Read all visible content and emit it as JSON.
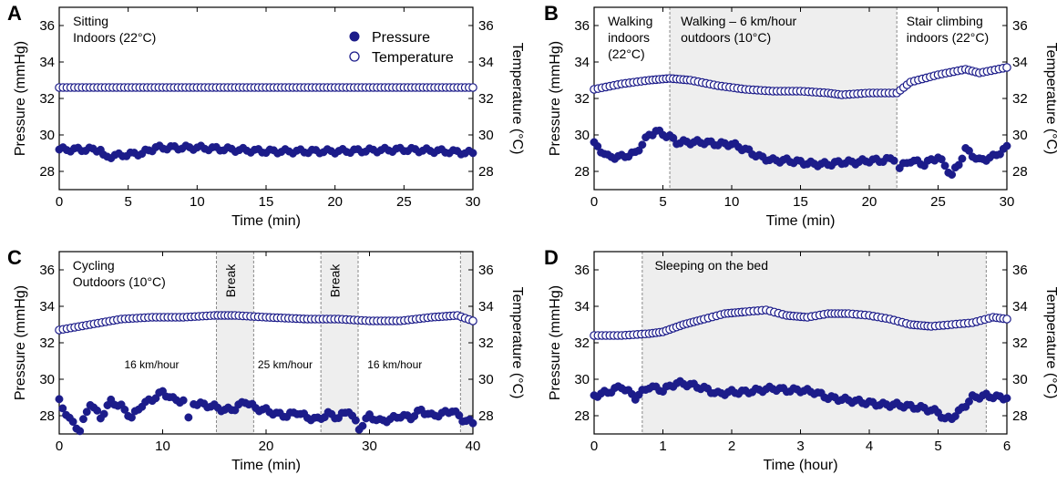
{
  "colors": {
    "pressure": "#1c1c8a",
    "temperature": "#1c1c8a",
    "shade": "#eeeeee",
    "divider": "#888888"
  },
  "legend": {
    "pressure": "Pressure",
    "temperature": "Temperature",
    "placement": "top-right of panel A"
  },
  "chart_data": [
    {
      "type": "scatter",
      "letter": "A",
      "xlabel": "Time (min)",
      "ylabel": "Pressure (mmHg)",
      "ylabel2": "Temperature (°C)",
      "xlim": [
        0,
        30
      ],
      "ylim": [
        27,
        37
      ],
      "xticks": [
        "0",
        "5",
        "10",
        "15",
        "20",
        "25",
        "30"
      ],
      "yticks": [
        "28",
        "30",
        "32",
        "34",
        "36"
      ],
      "shaded": [],
      "dividers": [],
      "annotations": [
        {
          "text": "Sitting",
          "x": 1,
          "y": 36.0,
          "size": "normal"
        },
        {
          "text": "Indoors (22°C)",
          "x": 1,
          "y": 35.1,
          "size": "normal"
        }
      ],
      "series": [
        {
          "name": "Pressure",
          "marker": "filled",
          "x": [
            0,
            3,
            3.2,
            6,
            7,
            10,
            15,
            20,
            25,
            28,
            30
          ],
          "y": [
            29.2,
            29.2,
            28.8,
            29.0,
            29.3,
            29.3,
            29.1,
            29.1,
            29.2,
            29.1,
            29.0
          ]
        },
        {
          "name": "Temperature",
          "marker": "open",
          "x": [
            0,
            5,
            10,
            15,
            20,
            25,
            30
          ],
          "y": [
            32.6,
            32.6,
            32.6,
            32.6,
            32.6,
            32.6,
            32.6
          ]
        }
      ]
    },
    {
      "type": "scatter",
      "letter": "B",
      "xlabel": "Time (min)",
      "ylabel": "Pressure (mmHg)",
      "ylabel2": "Temperature (°C)",
      "xlim": [
        0,
        30
      ],
      "ylim": [
        27,
        37
      ],
      "xticks": [
        "0",
        "5",
        "10",
        "15",
        "20",
        "25",
        "30"
      ],
      "yticks": [
        "28",
        "30",
        "32",
        "34",
        "36"
      ],
      "shaded": [
        [
          5.5,
          22
        ]
      ],
      "dividers": [
        5.5,
        22
      ],
      "annotations": [
        {
          "text": "Walking",
          "x": 1,
          "y": 36.0,
          "size": "normal"
        },
        {
          "text": "indoors",
          "x": 1,
          "y": 35.1,
          "size": "normal"
        },
        {
          "text": "(22°C)",
          "x": 1,
          "y": 34.2,
          "size": "normal"
        },
        {
          "text": "Walking – 6 km/hour",
          "x": 6.3,
          "y": 36.0,
          "size": "normal"
        },
        {
          "text": "outdoors (10°C)",
          "x": 6.3,
          "y": 35.1,
          "size": "normal"
        },
        {
          "text": "Stair climbing",
          "x": 22.7,
          "y": 36.0,
          "size": "normal"
        },
        {
          "text": "indoors (22°C)",
          "x": 22.7,
          "y": 35.1,
          "size": "normal"
        }
      ],
      "series": [
        {
          "name": "Pressure",
          "marker": "filled",
          "x": [
            0,
            1,
            2,
            3,
            4,
            4.5,
            5.5,
            6,
            7,
            8,
            9,
            10,
            11,
            12,
            13,
            14,
            15,
            16,
            17,
            18,
            19,
            20,
            21,
            21.8,
            22.2,
            23,
            24,
            25,
            26,
            26.5,
            27,
            28,
            29,
            30
          ],
          "y": [
            29.5,
            28.8,
            28.8,
            29.0,
            30.0,
            30.2,
            29.9,
            29.6,
            29.6,
            29.6,
            29.5,
            29.5,
            29.2,
            28.8,
            28.6,
            28.6,
            28.5,
            28.4,
            28.4,
            28.5,
            28.5,
            28.6,
            28.6,
            28.7,
            28.2,
            28.6,
            28.4,
            28.8,
            27.8,
            28.4,
            29.2,
            28.6,
            28.8,
            29.3
          ]
        },
        {
          "name": "Temperature",
          "marker": "open",
          "x": [
            0,
            2,
            4,
            5.5,
            7,
            9,
            11,
            13,
            15,
            17,
            18,
            20,
            22,
            23,
            25,
            27,
            28,
            30
          ],
          "y": [
            32.5,
            32.8,
            33.0,
            33.1,
            33.0,
            32.7,
            32.5,
            32.4,
            32.4,
            32.3,
            32.2,
            32.3,
            32.3,
            32.9,
            33.3,
            33.6,
            33.4,
            33.7
          ]
        }
      ]
    },
    {
      "type": "scatter",
      "letter": "C",
      "xlabel": "Time (min)",
      "ylabel": "Pressure (mmHg)",
      "ylabel2": "Temperature (°C)",
      "xlim": [
        0,
        40
      ],
      "ylim": [
        27,
        37
      ],
      "xticks": [
        "0",
        "10",
        "20",
        "30",
        "40"
      ],
      "yticks": [
        "28",
        "30",
        "32",
        "34",
        "36"
      ],
      "shaded": [
        [
          15.2,
          18.8
        ],
        [
          25.3,
          28.9
        ],
        [
          38.8,
          40
        ]
      ],
      "dividers": [
        15.2,
        18.8,
        25.3,
        28.9,
        38.8
      ],
      "breaks": [
        {
          "text": "Break",
          "x": 17,
          "y": 35.4
        },
        {
          "text": "Break",
          "x": 27.1,
          "y": 35.4
        }
      ],
      "annotations": [
        {
          "text": "Cycling",
          "x": 1.3,
          "y": 36.0,
          "size": "normal"
        },
        {
          "text": "Outdoors (10°C)",
          "x": 1.3,
          "y": 35.1,
          "size": "normal"
        },
        {
          "text": "16 km/hour",
          "x": 6.3,
          "y": 30.6,
          "size": "small"
        },
        {
          "text": "25 km/hour",
          "x": 19.2,
          "y": 30.6,
          "size": "small"
        },
        {
          "text": "16 km/hour",
          "x": 29.8,
          "y": 30.6,
          "size": "small"
        }
      ],
      "series": [
        {
          "name": "Pressure",
          "marker": "filled",
          "x": [
            0,
            1,
            2,
            3,
            4,
            5,
            6,
            7,
            8,
            9,
            10,
            11,
            12,
            12.5,
            13,
            14,
            15,
            16,
            17,
            18,
            19,
            20,
            21,
            22,
            23,
            24,
            25,
            26,
            27,
            28,
            29,
            30,
            31,
            32,
            33,
            34,
            35,
            36,
            37,
            38,
            39,
            40
          ],
          "y": [
            28.8,
            27.8,
            27.2,
            28.7,
            27.9,
            28.8,
            28.5,
            27.9,
            28.6,
            28.9,
            29.3,
            28.9,
            28.8,
            27.8,
            28.7,
            28.6,
            28.5,
            28.3,
            28.4,
            28.8,
            28.4,
            28.3,
            28.1,
            28.0,
            28.2,
            27.9,
            27.8,
            28.1,
            27.9,
            28.3,
            27.3,
            28.0,
            27.7,
            27.8,
            28.0,
            27.9,
            28.3,
            28.0,
            28.1,
            28.3,
            27.8,
            27.6
          ]
        },
        {
          "name": "Temperature",
          "marker": "open",
          "x": [
            0,
            3,
            6,
            9,
            12,
            15,
            17,
            20,
            24,
            27,
            30,
            33,
            36,
            38.5,
            40
          ],
          "y": [
            32.7,
            33.0,
            33.3,
            33.4,
            33.4,
            33.5,
            33.5,
            33.4,
            33.3,
            33.3,
            33.2,
            33.2,
            33.4,
            33.5,
            33.2
          ]
        }
      ]
    },
    {
      "type": "scatter",
      "letter": "D",
      "xlabel": "Time (hour)",
      "ylabel": "Pressure (mmHg)",
      "ylabel2": "Temperature (°C)",
      "xlim": [
        0,
        6
      ],
      "ylim": [
        27,
        37
      ],
      "xticks": [
        "0",
        "1",
        "2",
        "3",
        "4",
        "5",
        "6"
      ],
      "yticks": [
        "28",
        "30",
        "32",
        "34",
        "36"
      ],
      "shaded": [
        [
          0.7,
          5.7
        ]
      ],
      "dividers": [
        0.7,
        5.7
      ],
      "annotations": [
        {
          "text": "Sleeping on the bed",
          "x": 0.88,
          "y": 36.0,
          "size": "normal"
        }
      ],
      "series": [
        {
          "name": "Pressure",
          "marker": "filled",
          "x": [
            0,
            0.2,
            0.4,
            0.6,
            0.8,
            1.0,
            1.2,
            1.4,
            1.6,
            1.8,
            2.0,
            2.2,
            2.4,
            2.6,
            2.8,
            3.0,
            3.2,
            3.4,
            3.6,
            3.8,
            4.0,
            4.2,
            4.4,
            4.6,
            4.8,
            5.0,
            5.1,
            5.2,
            5.3,
            5.5,
            5.7,
            5.9,
            6.0
          ],
          "y": [
            29.1,
            29.3,
            29.6,
            29.0,
            29.6,
            29.4,
            29.8,
            29.7,
            29.5,
            29.2,
            29.3,
            29.3,
            29.4,
            29.5,
            29.4,
            29.4,
            29.3,
            29.0,
            28.9,
            28.8,
            28.7,
            28.6,
            28.6,
            28.5,
            28.4,
            28.2,
            27.8,
            27.9,
            28.2,
            29.0,
            29.1,
            29.0,
            29.0
          ]
        },
        {
          "name": "Temperature",
          "marker": "open",
          "x": [
            0,
            0.4,
            0.8,
            1.0,
            1.3,
            1.6,
            1.9,
            2.2,
            2.5,
            2.8,
            3.1,
            3.4,
            3.7,
            4.0,
            4.3,
            4.6,
            4.9,
            5.2,
            5.5,
            5.8,
            6.0
          ],
          "y": [
            32.4,
            32.4,
            32.5,
            32.6,
            33.0,
            33.3,
            33.6,
            33.7,
            33.8,
            33.5,
            33.4,
            33.6,
            33.6,
            33.5,
            33.3,
            33.0,
            32.9,
            33.0,
            33.1,
            33.4,
            33.3
          ]
        }
      ]
    }
  ]
}
